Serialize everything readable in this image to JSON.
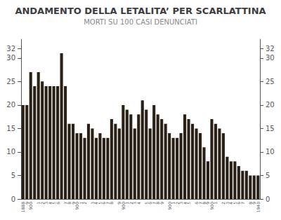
{
  "chart_data": {
    "type": "bar",
    "title": "ANDAMENTO DELLA LETALITA’ PER SCARLATTINA",
    "subtitle": "MORTI SU 100 CASI DENUNCIATI",
    "categories": [
      "1888",
      "9",
      "900",
      null,
      "1",
      "2",
      "3",
      "4",
      "5",
      "6",
      null,
      "7",
      "8",
      "9",
      "900",
      "1",
      "2",
      null,
      "3",
      "4",
      "5",
      "6",
      "7",
      "8",
      null,
      "9",
      "900",
      "1",
      "2",
      "3",
      "4",
      null,
      "5",
      "6",
      "7",
      "8",
      "9",
      null,
      "900",
      "1",
      "2",
      "3",
      "4",
      "5",
      null,
      "6",
      "7",
      "8",
      "9",
      "900",
      "1",
      null,
      "2",
      "3",
      "4",
      "5",
      "6",
      "7",
      null,
      "8",
      "9",
      "1940"
    ],
    "values": [
      20,
      20,
      27,
      24,
      27,
      25,
      24,
      24,
      24,
      24,
      31,
      24,
      16,
      16,
      14,
      14,
      13,
      16,
      15,
      13,
      14,
      13,
      13,
      17,
      16,
      15,
      20,
      19,
      18,
      15,
      18,
      21,
      19,
      15,
      20,
      18,
      17,
      16,
      14,
      13,
      13,
      14,
      18,
      17,
      16,
      15,
      14,
      11,
      8,
      17,
      16,
      15,
      14,
      9,
      8,
      8,
      7,
      6,
      6,
      5,
      5,
      5
    ],
    "color": "#2a2015",
    "ylim": [
      0,
      34
    ],
    "yticks": [
      0,
      5,
      10,
      15,
      20,
      25,
      30,
      32
    ],
    "y2lim": [
      0,
      34
    ],
    "y2ticks": [
      0,
      5,
      10,
      15,
      20,
      25,
      30,
      32
    ],
    "grid": false
  }
}
